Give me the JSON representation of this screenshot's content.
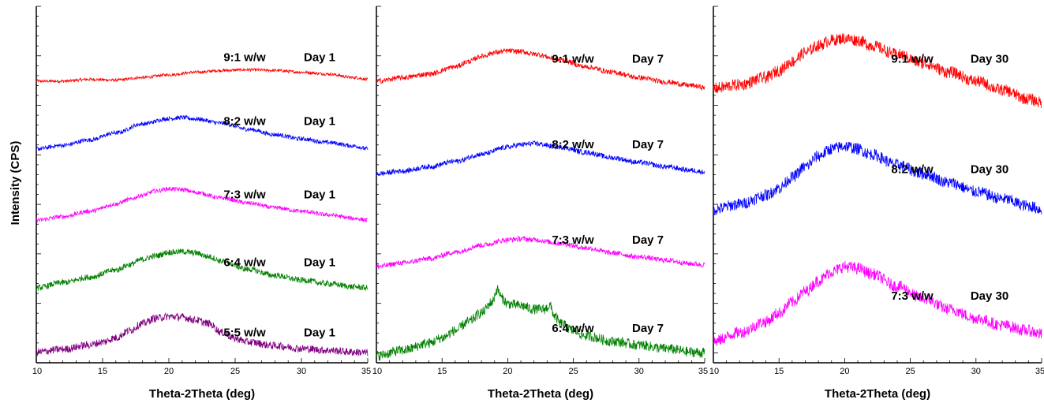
{
  "shared_ylabel": "Intensity (CPS)",
  "chart_data": [
    {
      "type": "line",
      "title": "",
      "xlabel": "Theta-2Theta (deg)",
      "ylabel": "Intensity (CPS)",
      "xlim": [
        10,
        35
      ],
      "xticks": [
        10,
        15,
        20,
        25,
        30,
        35
      ],
      "series": [
        {
          "name": "9:1 w/w",
          "day": "Day 1",
          "color": "#ff0000",
          "noise": 0.35,
          "x": [
            10,
            12,
            14,
            16,
            18,
            20,
            22,
            24,
            26,
            28,
            30,
            32,
            34,
            35
          ],
          "y": [
            0.79,
            0.79,
            0.795,
            0.793,
            0.8,
            0.808,
            0.815,
            0.82,
            0.822,
            0.82,
            0.815,
            0.81,
            0.8,
            0.795
          ]
        },
        {
          "name": "8:2 w/w",
          "day": "Day 1",
          "color": "#0000ff",
          "noise": 0.5,
          "x": [
            10,
            12,
            14,
            16,
            18,
            20,
            21,
            22,
            24,
            26,
            28,
            30,
            32,
            34,
            35
          ],
          "y": [
            0.6,
            0.61,
            0.625,
            0.645,
            0.67,
            0.685,
            0.688,
            0.684,
            0.672,
            0.655,
            0.64,
            0.628,
            0.618,
            0.608,
            0.6
          ]
        },
        {
          "name": "7:3 w/w",
          "day": "Day 1",
          "color": "#ff00ff",
          "noise": 0.5,
          "x": [
            10,
            12,
            14,
            16,
            17,
            18,
            19,
            20,
            21,
            22,
            24,
            26,
            28,
            30,
            32,
            34,
            35
          ],
          "y": [
            0.4,
            0.41,
            0.425,
            0.445,
            0.458,
            0.47,
            0.482,
            0.488,
            0.486,
            0.478,
            0.462,
            0.448,
            0.435,
            0.425,
            0.415,
            0.405,
            0.4
          ]
        },
        {
          "name": "6:4 w/w",
          "day": "Day 1",
          "color": "#008000",
          "noise": 0.7,
          "x": [
            10,
            12,
            14,
            16,
            17,
            18,
            19,
            20,
            21,
            22,
            23,
            24,
            26,
            28,
            30,
            32,
            34,
            35
          ],
          "y": [
            0.21,
            0.225,
            0.24,
            0.26,
            0.275,
            0.29,
            0.3,
            0.31,
            0.312,
            0.308,
            0.298,
            0.285,
            0.262,
            0.245,
            0.232,
            0.222,
            0.213,
            0.21
          ]
        },
        {
          "name": "5:5 w/w",
          "day": "Day 1",
          "color": "#800080",
          "noise": 0.9,
          "x": [
            10,
            12,
            14,
            15,
            16,
            17,
            18,
            19,
            20,
            21,
            22,
            23,
            24,
            25,
            26,
            28,
            30,
            32,
            34,
            35
          ],
          "y": [
            0.03,
            0.038,
            0.05,
            0.058,
            0.07,
            0.09,
            0.11,
            0.125,
            0.13,
            0.128,
            0.12,
            0.11,
            0.085,
            0.068,
            0.058,
            0.048,
            0.04,
            0.035,
            0.03,
            0.028
          ]
        }
      ]
    },
    {
      "type": "line",
      "title": "",
      "xlabel": "Theta-2Theta (deg)",
      "ylabel": "",
      "xlim": [
        10,
        35
      ],
      "xticks": [
        10,
        15,
        20,
        25,
        30,
        35
      ],
      "series": [
        {
          "name": "9:1 w/w",
          "day": "Day 7",
          "color": "#ff0000",
          "noise": 0.6,
          "x": [
            10,
            12,
            14,
            16,
            17,
            18,
            19,
            20,
            21,
            22,
            24,
            26,
            28,
            30,
            32,
            34,
            35
          ],
          "y": [
            0.79,
            0.8,
            0.81,
            0.83,
            0.845,
            0.86,
            0.87,
            0.875,
            0.873,
            0.866,
            0.85,
            0.83,
            0.815,
            0.8,
            0.788,
            0.778,
            0.772
          ]
        },
        {
          "name": "8:2 w/w",
          "day": "Day 7",
          "color": "#0000ff",
          "noise": 0.6,
          "x": [
            10,
            12,
            14,
            16,
            18,
            20,
            21,
            22,
            24,
            26,
            28,
            30,
            32,
            34,
            35
          ],
          "y": [
            0.53,
            0.538,
            0.55,
            0.565,
            0.585,
            0.605,
            0.612,
            0.615,
            0.605,
            0.59,
            0.575,
            0.562,
            0.55,
            0.54,
            0.535
          ]
        },
        {
          "name": "7:3 w/w",
          "day": "Day 7",
          "color": "#ff00ff",
          "noise": 0.6,
          "x": [
            10,
            12,
            14,
            16,
            18,
            20,
            21,
            22,
            24,
            26,
            28,
            30,
            32,
            34,
            35
          ],
          "y": [
            0.27,
            0.28,
            0.292,
            0.31,
            0.33,
            0.345,
            0.348,
            0.345,
            0.335,
            0.322,
            0.308,
            0.297,
            0.288,
            0.278,
            0.275
          ]
        },
        {
          "name": "6:4 w/w",
          "day": "Day 7",
          "color": "#008000",
          "noise": 1.2,
          "x": [
            10,
            12,
            14,
            15,
            16,
            17,
            18,
            18.8,
            19.2,
            19.6,
            20,
            21,
            22,
            22.8,
            23.2,
            23.6,
            24,
            25,
            26,
            28,
            30,
            32,
            34,
            35
          ],
          "y": [
            0.02,
            0.035,
            0.055,
            0.07,
            0.09,
            0.115,
            0.14,
            0.17,
            0.205,
            0.18,
            0.165,
            0.16,
            0.15,
            0.15,
            0.16,
            0.13,
            0.11,
            0.09,
            0.075,
            0.06,
            0.05,
            0.04,
            0.03,
            0.028
          ]
        }
      ]
    },
    {
      "type": "line",
      "title": "",
      "xlabel": "Theta-2Theta (deg)",
      "ylabel": "",
      "xlim": [
        10,
        35
      ],
      "xticks": [
        10,
        15,
        20,
        25,
        30,
        35
      ],
      "series": [
        {
          "name": "9:1 w/w",
          "day": "Day 30",
          "color": "#ff0000",
          "noise": 1.4,
          "x": [
            10,
            12,
            14,
            15,
            16,
            17,
            18,
            19,
            20,
            21,
            22,
            24,
            26,
            28,
            30,
            32,
            34,
            35
          ],
          "y": [
            0.77,
            0.78,
            0.8,
            0.82,
            0.845,
            0.87,
            0.89,
            0.905,
            0.91,
            0.905,
            0.89,
            0.865,
            0.84,
            0.815,
            0.79,
            0.765,
            0.74,
            0.73
          ]
        },
        {
          "name": "8:2 w/w",
          "day": "Day 30",
          "color": "#0000ff",
          "noise": 1.4,
          "x": [
            10,
            12,
            14,
            15,
            16,
            17,
            18,
            19,
            20,
            21,
            22,
            24,
            26,
            28,
            30,
            32,
            34,
            35
          ],
          "y": [
            0.43,
            0.445,
            0.47,
            0.49,
            0.52,
            0.55,
            0.58,
            0.6,
            0.608,
            0.6,
            0.585,
            0.555,
            0.53,
            0.505,
            0.48,
            0.46,
            0.44,
            0.43
          ]
        },
        {
          "name": "7:3 w/w",
          "day": "Day 30",
          "color": "#ff00ff",
          "noise": 1.4,
          "x": [
            10,
            12,
            14,
            15,
            16,
            17,
            18,
            19,
            20,
            21,
            22,
            24,
            26,
            28,
            30,
            32,
            34,
            35
          ],
          "y": [
            0.06,
            0.085,
            0.115,
            0.14,
            0.17,
            0.2,
            0.23,
            0.255,
            0.27,
            0.265,
            0.25,
            0.215,
            0.18,
            0.15,
            0.125,
            0.105,
            0.09,
            0.08
          ]
        }
      ]
    }
  ]
}
